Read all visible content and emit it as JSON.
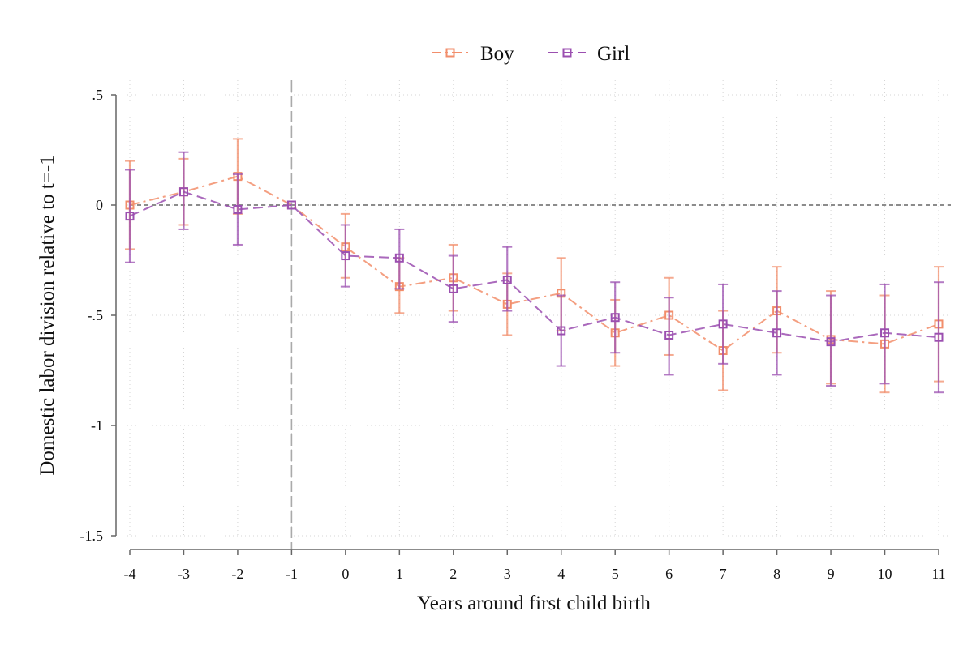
{
  "chart_data": {
    "type": "line",
    "title": "",
    "xlabel": "Years around first child birth",
    "ylabel": "Domestic labor division relative to t=-1",
    "x": [
      -4,
      -3,
      -2,
      -1,
      0,
      1,
      2,
      3,
      4,
      5,
      6,
      7,
      8,
      9,
      10,
      11
    ],
    "x_tick_labels": [
      "-4",
      "-3",
      "-2",
      "-1",
      "0",
      "1",
      "2",
      "3",
      "4",
      "5",
      "6",
      "7",
      "8",
      "9",
      "10",
      "11"
    ],
    "y_ticks": [
      0.5,
      0,
      -0.5,
      -1,
      -1.5
    ],
    "y_tick_labels": [
      ".5",
      "0",
      "-.5",
      "-1",
      "-1.5"
    ],
    "xlim": [
      -4,
      11
    ],
    "ylim": [
      -1.5,
      0.5
    ],
    "grid": true,
    "reference_lines": {
      "horizontal_y": 0,
      "vertical_x": -1
    },
    "legend_position": "top-center",
    "series": [
      {
        "name": "Boy",
        "color": "#f28e6b",
        "line_style": "dash-dot",
        "marker": "hollow-square",
        "values": [
          0.0,
          0.06,
          0.13,
          0.0,
          -0.19,
          -0.37,
          -0.33,
          -0.45,
          -0.4,
          -0.58,
          -0.5,
          -0.66,
          -0.48,
          -0.61,
          -0.63,
          -0.54
        ],
        "ci_low": [
          -0.2,
          -0.09,
          -0.04,
          0.0,
          -0.33,
          -0.49,
          -0.48,
          -0.59,
          -0.57,
          -0.73,
          -0.68,
          -0.84,
          -0.67,
          -0.81,
          -0.85,
          -0.8
        ],
        "ci_high": [
          0.2,
          0.21,
          0.3,
          0.0,
          -0.04,
          -0.24,
          -0.18,
          -0.31,
          -0.24,
          -0.43,
          -0.33,
          -0.48,
          -0.28,
          -0.39,
          -0.41,
          -0.28
        ]
      },
      {
        "name": "Girl",
        "color": "#9b4fb0",
        "line_style": "dash",
        "marker": "hollow-square",
        "values": [
          -0.05,
          0.06,
          -0.02,
          0.0,
          -0.23,
          -0.24,
          -0.38,
          -0.34,
          -0.57,
          -0.51,
          -0.59,
          -0.54,
          -0.58,
          -0.62,
          -0.58,
          -0.6
        ],
        "ci_low": [
          -0.26,
          -0.11,
          -0.18,
          0.0,
          -0.37,
          -0.38,
          -0.53,
          -0.48,
          -0.73,
          -0.67,
          -0.77,
          -0.72,
          -0.77,
          -0.82,
          -0.81,
          -0.85
        ],
        "ci_high": [
          0.16,
          0.24,
          0.14,
          0.0,
          -0.09,
          -0.11,
          -0.23,
          -0.19,
          -0.41,
          -0.35,
          -0.42,
          -0.36,
          -0.39,
          -0.41,
          -0.36,
          -0.35
        ]
      }
    ]
  }
}
